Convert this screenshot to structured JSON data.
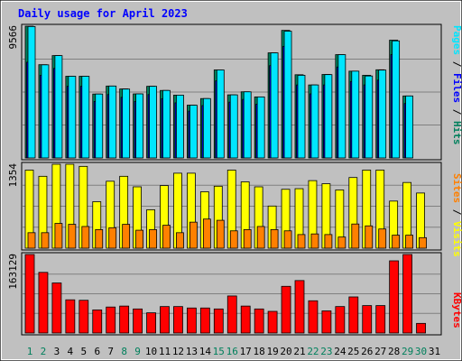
{
  "title": "Daily usage for April 2023",
  "chart_data": [
    {
      "type": "bar",
      "panel": "hits-files-pages",
      "categories": [
        "1",
        "2",
        "3",
        "4",
        "5",
        "6",
        "7",
        "8",
        "9",
        "10",
        "11",
        "12",
        "13",
        "14",
        "15",
        "16",
        "17",
        "18",
        "19",
        "20",
        "21",
        "22",
        "23",
        "24",
        "25",
        "26",
        "27",
        "28",
        "29",
        "30",
        "31"
      ],
      "y_max_label": "9566",
      "ylim": [
        0,
        9566
      ],
      "grid": true,
      "series": [
        {
          "name": "Hits",
          "color": "#00805c",
          "values": [
            9566,
            6770,
            7430,
            5930,
            5930,
            4640,
            5220,
            5010,
            4650,
            5200,
            4900,
            4560,
            3830,
            4310,
            6390,
            4580,
            4800,
            4430,
            7630,
            9260,
            6040,
            5300,
            6060,
            7500,
            6300,
            6000,
            6400,
            8550,
            4500,
            0,
            0
          ]
        },
        {
          "name": "Files",
          "color": "#0000ff",
          "values": [
            6950,
            6000,
            6500,
            5200,
            5200,
            4100,
            4600,
            4400,
            4100,
            4600,
            4300,
            4000,
            3400,
            3800,
            5600,
            4050,
            4250,
            3900,
            6700,
            8100,
            5300,
            4650,
            5300,
            6600,
            5550,
            5300,
            5650,
            7500,
            3950,
            0,
            0
          ]
        },
        {
          "name": "Pages",
          "color": "#00e6ff",
          "values": [
            9540,
            6760,
            7430,
            5930,
            5930,
            4640,
            5220,
            5000,
            4650,
            5200,
            4900,
            4560,
            3830,
            4310,
            6390,
            4580,
            4800,
            4430,
            7630,
            9200,
            6000,
            5300,
            6050,
            7500,
            6300,
            5950,
            6380,
            8500,
            4500,
            0,
            0
          ]
        }
      ]
    },
    {
      "type": "bar",
      "panel": "visits-sites",
      "categories": [
        "1",
        "2",
        "3",
        "4",
        "5",
        "6",
        "7",
        "8",
        "9",
        "10",
        "11",
        "12",
        "13",
        "14",
        "15",
        "16",
        "17",
        "18",
        "19",
        "20",
        "21",
        "22",
        "23",
        "24",
        "25",
        "26",
        "27",
        "28",
        "29",
        "30",
        "31"
      ],
      "y_max_label": "1354",
      "ylim": [
        0,
        1354
      ],
      "grid": true,
      "series": [
        {
          "name": "Visits",
          "color": "#ffff00",
          "values": [
            1260,
            1160,
            1354,
            1354,
            1320,
            750,
            1080,
            1160,
            990,
            620,
            1010,
            1210,
            1210,
            910,
            1000,
            1260,
            1070,
            990,
            680,
            950,
            960,
            1090,
            1040,
            940,
            1140,
            1260,
            1260,
            760,
            1060,
            890,
            0
          ]
        },
        {
          "name": "Sites",
          "color": "#ff8000",
          "values": [
            250,
            250,
            400,
            385,
            350,
            300,
            330,
            385,
            290,
            300,
            370,
            250,
            420,
            470,
            450,
            280,
            300,
            350,
            300,
            280,
            220,
            230,
            220,
            180,
            390,
            360,
            310,
            210,
            210,
            170,
            0
          ]
        }
      ]
    },
    {
      "type": "bar",
      "panel": "kbytes",
      "categories": [
        "1",
        "2",
        "3",
        "4",
        "5",
        "6",
        "7",
        "8",
        "9",
        "10",
        "11",
        "12",
        "13",
        "14",
        "15",
        "16",
        "17",
        "18",
        "19",
        "20",
        "21",
        "22",
        "23",
        "24",
        "25",
        "26",
        "27",
        "28",
        "29",
        "30",
        "31"
      ],
      "y_max_label": "163129",
      "ylim": [
        0,
        163129
      ],
      "grid": true,
      "series": [
        {
          "name": "KBytes",
          "color": "#ff0000",
          "values": [
            163129,
            126000,
            104000,
            69000,
            68000,
            48000,
            54000,
            56000,
            50000,
            42000,
            55000,
            55000,
            52000,
            52000,
            50000,
            77000,
            56000,
            50000,
            45000,
            97000,
            109000,
            67000,
            46000,
            55000,
            75000,
            57000,
            57000,
            150000,
            163129,
            20000,
            0
          ]
        }
      ]
    }
  ],
  "legend_right": {
    "panel1": [
      {
        "text": "Pages",
        "color": "#00e6ff"
      },
      {
        "text": " / ",
        "color": "#000000"
      },
      {
        "text": "Files",
        "color": "#0000ff"
      },
      {
        "text": " / ",
        "color": "#000000"
      },
      {
        "text": "Hits",
        "color": "#00805c"
      }
    ],
    "panel2": [
      {
        "text": "Sites",
        "color": "#ff8000"
      },
      {
        "text": " / ",
        "color": "#000000"
      },
      {
        "text": "Visits",
        "color": "#ffff00"
      }
    ],
    "panel3": [
      {
        "text": "KBytes",
        "color": "#ff0000"
      }
    ]
  },
  "weekend_days": [
    "1",
    "2",
    "8",
    "9",
    "15",
    "16",
    "22",
    "23",
    "29",
    "30"
  ],
  "colors": {
    "weekday_label": "#000000",
    "weekend_label": "#00805c",
    "title": "#0000ff"
  }
}
